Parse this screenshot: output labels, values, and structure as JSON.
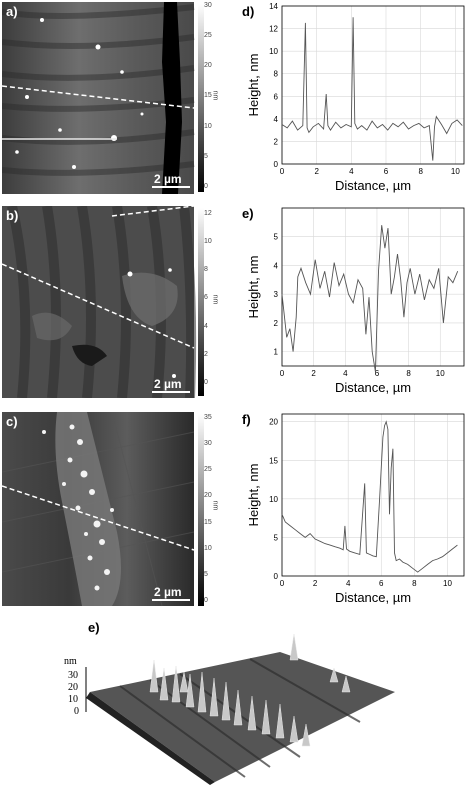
{
  "panels": {
    "a": {
      "letter": "a)",
      "scalebar": "2 µm",
      "cbar_unit": "nm",
      "cbar_ticks": [
        "30",
        "25",
        "20",
        "15",
        "10",
        "5",
        "0"
      ]
    },
    "b": {
      "letter": "b)",
      "scalebar": "2 µm",
      "cbar_unit": "nm",
      "cbar_ticks": [
        "12",
        "10",
        "8",
        "6",
        "4",
        "2",
        "0"
      ]
    },
    "c": {
      "letter": "c)",
      "scalebar": "2 µm",
      "cbar_unit": "nm",
      "cbar_ticks": [
        "35",
        "30",
        "25",
        "20",
        "15",
        "10",
        "5",
        "0"
      ]
    },
    "e3d": {
      "letter": "e)",
      "unit": "nm",
      "ticks": [
        "30",
        "20",
        "10",
        "0"
      ]
    }
  },
  "chart_data": [
    {
      "type": "line",
      "panel_label": "d)",
      "xlabel": "Distance, µm",
      "ylabel": "Height, nm",
      "xlim": [
        0,
        10.5
      ],
      "ylim": [
        0,
        14
      ],
      "xticks": [
        0,
        2,
        4,
        6,
        8,
        10
      ],
      "yticks": [
        0,
        2,
        4,
        6,
        8,
        10,
        12,
        14
      ],
      "x": [
        0,
        0.3,
        0.6,
        0.9,
        1.2,
        1.35,
        1.45,
        1.55,
        1.8,
        2.1,
        2.4,
        2.55,
        2.65,
        2.8,
        3.1,
        3.4,
        3.7,
        4.0,
        4.1,
        4.2,
        4.35,
        4.6,
        4.9,
        5.2,
        5.5,
        5.8,
        6.1,
        6.4,
        6.7,
        7.0,
        7.3,
        7.6,
        7.9,
        8.2,
        8.5,
        8.7,
        8.8,
        8.9,
        9.2,
        9.5,
        9.8,
        10.1,
        10.4
      ],
      "y": [
        3.5,
        3.2,
        3.8,
        3.0,
        3.4,
        12.5,
        3.2,
        2.8,
        3.3,
        3.6,
        3.1,
        6.2,
        3.4,
        3.0,
        3.7,
        3.2,
        3.5,
        3.3,
        13.0,
        3.6,
        3.1,
        3.4,
        3.0,
        3.8,
        3.2,
        3.5,
        3.0,
        3.6,
        3.3,
        3.7,
        3.1,
        3.4,
        3.6,
        3.2,
        3.4,
        0.3,
        3.3,
        4.2,
        3.5,
        2.7,
        3.6,
        3.9,
        3.4
      ]
    },
    {
      "type": "line",
      "panel_label": "e)",
      "xlabel": "Distance, µm",
      "ylabel": "Height, nm",
      "xlim": [
        0,
        11.5
      ],
      "ylim": [
        0.5,
        6.0
      ],
      "xticks": [
        0,
        2,
        4,
        6,
        8,
        10
      ],
      "yticks": [
        1,
        2,
        3,
        4,
        5
      ],
      "x": [
        0,
        0.3,
        0.5,
        0.7,
        0.9,
        1.0,
        1.2,
        1.5,
        1.8,
        2.1,
        2.4,
        2.7,
        3.0,
        3.3,
        3.6,
        3.9,
        4.2,
        4.5,
        4.8,
        5.1,
        5.3,
        5.5,
        5.7,
        5.9,
        6.1,
        6.3,
        6.5,
        6.7,
        6.9,
        7.1,
        7.3,
        7.5,
        7.7,
        7.9,
        8.1,
        8.4,
        8.7,
        9.0,
        9.3,
        9.6,
        9.9,
        10.2,
        10.5,
        10.8,
        11.1
      ],
      "y": [
        3.0,
        1.5,
        1.8,
        1.0,
        2.2,
        3.6,
        3.9,
        3.4,
        3.0,
        4.2,
        3.2,
        3.8,
        2.9,
        4.1,
        3.3,
        3.7,
        3.0,
        2.7,
        3.5,
        3.2,
        1.6,
        2.9,
        1.0,
        0.3,
        3.8,
        5.4,
        4.6,
        5.3,
        3.0,
        3.6,
        4.4,
        3.5,
        2.2,
        3.4,
        3.9,
        3.0,
        3.7,
        2.8,
        3.5,
        3.2,
        3.9,
        2.0,
        3.6,
        3.4,
        3.8
      ]
    },
    {
      "type": "line",
      "panel_label": "f)",
      "xlabel": "Distance, µm",
      "ylabel": "Height, nm",
      "xlim": [
        0,
        11.0
      ],
      "ylim": [
        0,
        21
      ],
      "xticks": [
        0,
        2,
        4,
        6,
        8,
        10
      ],
      "yticks": [
        0,
        5,
        10,
        15,
        20
      ],
      "x": [
        0,
        0.2,
        0.5,
        0.8,
        1.1,
        1.4,
        1.7,
        2.0,
        2.3,
        2.6,
        2.9,
        3.2,
        3.5,
        3.7,
        3.8,
        3.9,
        4.1,
        4.4,
        4.7,
        4.9,
        5.0,
        5.1,
        5.3,
        5.5,
        5.7,
        5.9,
        6.1,
        6.2,
        6.3,
        6.4,
        6.5,
        6.6,
        6.7,
        6.8,
        6.9,
        7.1,
        7.3,
        7.6,
        7.9,
        8.2,
        8.5,
        8.8,
        9.1,
        9.4,
        9.7,
        10.0,
        10.3,
        10.6
      ],
      "y": [
        8.0,
        7.0,
        6.5,
        6.0,
        5.5,
        5.0,
        5.5,
        4.8,
        4.5,
        4.2,
        4.0,
        3.8,
        3.6,
        3.4,
        6.5,
        3.5,
        3.2,
        3.0,
        2.8,
        9.0,
        12.0,
        3.0,
        2.8,
        2.6,
        2.5,
        10.0,
        18.0,
        19.5,
        20.0,
        19.0,
        8.0,
        14.0,
        16.5,
        3.0,
        2.0,
        2.2,
        1.8,
        1.5,
        1.0,
        0.5,
        1.0,
        1.5,
        2.0,
        2.2,
        2.5,
        3.0,
        3.5,
        4.0
      ]
    }
  ]
}
